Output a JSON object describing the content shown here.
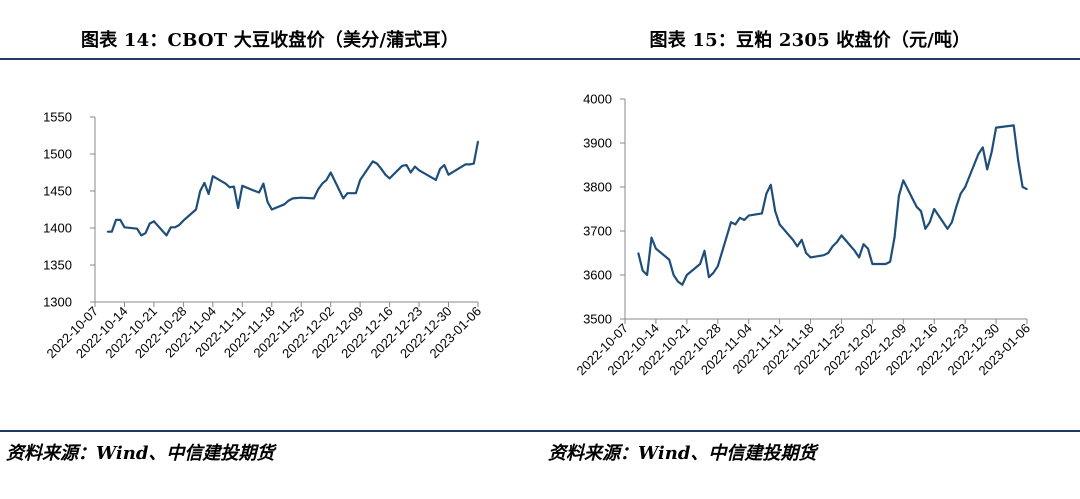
{
  "charts": [
    {
      "title": "图表 14：CBOT 大豆收盘价（美分/蒲式耳）",
      "source": "资料来源：Wind、中信建投期货",
      "chart_data": {
        "type": "line",
        "title": "图表 14：CBOT 大豆收盘价（美分/蒲式耳）",
        "xlabel": "",
        "ylabel": "",
        "ylim": [
          1300,
          1550
        ],
        "yticks": [
          1300,
          1350,
          1400,
          1450,
          1500,
          1550
        ],
        "x_tick_labels": [
          "2022-10-07",
          "2022-10-14",
          "2022-10-21",
          "2022-10-28",
          "2022-11-04",
          "2022-11-11",
          "2022-11-18",
          "2022-11-25",
          "2022-12-02",
          "2022-12-09",
          "2022-12-16",
          "2022-12-23",
          "2022-12-30",
          "2023-01-06"
        ],
        "x_start": "2022-10-07",
        "x_end": "2023-01-06",
        "grid": false,
        "line_color": "#1f4e79",
        "series": [
          {
            "name": "",
            "x": [
              "2022-10-10",
              "2022-10-11",
              "2022-10-12",
              "2022-10-13",
              "2022-10-14",
              "2022-10-17",
              "2022-10-18",
              "2022-10-19",
              "2022-10-20",
              "2022-10-21",
              "2022-10-24",
              "2022-10-25",
              "2022-10-26",
              "2022-10-27",
              "2022-10-28",
              "2022-10-31",
              "2022-11-01",
              "2022-11-02",
              "2022-11-03",
              "2022-11-04",
              "2022-11-07",
              "2022-11-08",
              "2022-11-09",
              "2022-11-10",
              "2022-11-11",
              "2022-11-14",
              "2022-11-15",
              "2022-11-16",
              "2022-11-17",
              "2022-11-18",
              "2022-11-21",
              "2022-11-22",
              "2022-11-23",
              "2022-11-25",
              "2022-11-28",
              "2022-11-29",
              "2022-11-30",
              "2022-12-01",
              "2022-12-02",
              "2022-12-05",
              "2022-12-06",
              "2022-12-07",
              "2022-12-08",
              "2022-12-09",
              "2022-12-12",
              "2022-12-13",
              "2022-12-14",
              "2022-12-15",
              "2022-12-16",
              "2022-12-19",
              "2022-12-20",
              "2022-12-21",
              "2022-12-22",
              "2022-12-23",
              "2022-12-27",
              "2022-12-28",
              "2022-12-29",
              "2022-12-30",
              "2023-01-03",
              "2023-01-04",
              "2023-01-05",
              "2023-01-06"
            ],
            "values": [
              1395,
              1395,
              1411,
              1411,
              1401,
              1399,
              1390,
              1393,
              1406,
              1409,
              1390,
              1401,
              1401,
              1404,
              1410,
              1425,
              1450,
              1461,
              1446,
              1470,
              1460,
              1455,
              1456,
              1427,
              1457,
              1450,
              1448,
              1460,
              1435,
              1425,
              1432,
              1437,
              1440,
              1441,
              1440,
              1452,
              1460,
              1465,
              1475,
              1440,
              1447,
              1447,
              1447,
              1465,
              1490,
              1487,
              1480,
              1472,
              1467,
              1484,
              1485,
              1475,
              1483,
              1478,
              1465,
              1480,
              1485,
              1472,
              1486,
              1486,
              1487,
              1517
            ]
          }
        ]
      }
    },
    {
      "title": "图表 15：豆粕 2305 收盘价（元/吨）",
      "source": "资料来源：Wind、中信建投期货",
      "chart_data": {
        "type": "line",
        "title": "图表 15：豆粕 2305 收盘价（元/吨）",
        "xlabel": "",
        "ylabel": "",
        "ylim": [
          3500,
          4000
        ],
        "yticks": [
          3500,
          3600,
          3700,
          3800,
          3900,
          4000
        ],
        "x_tick_labels": [
          "2022-10-07",
          "2022-10-14",
          "2022-10-21",
          "2022-10-28",
          "2022-11-04",
          "2022-11-11",
          "2022-11-18",
          "2022-11-25",
          "2022-12-02",
          "2022-12-09",
          "2022-12-16",
          "2022-12-23",
          "2022-12-30",
          "2023-01-06"
        ],
        "x_start": "2022-10-07",
        "x_end": "2023-01-06",
        "grid": false,
        "line_color": "#1f4e79",
        "series": [
          {
            "name": "",
            "x": [
              "2022-10-10",
              "2022-10-11",
              "2022-10-12",
              "2022-10-13",
              "2022-10-14",
              "2022-10-17",
              "2022-10-18",
              "2022-10-19",
              "2022-10-20",
              "2022-10-21",
              "2022-10-24",
              "2022-10-25",
              "2022-10-26",
              "2022-10-27",
              "2022-10-28",
              "2022-10-31",
              "2022-11-01",
              "2022-11-02",
              "2022-11-03",
              "2022-11-04",
              "2022-11-07",
              "2022-11-08",
              "2022-11-09",
              "2022-11-10",
              "2022-11-11",
              "2022-11-14",
              "2022-11-15",
              "2022-11-16",
              "2022-11-17",
              "2022-11-18",
              "2022-11-21",
              "2022-11-22",
              "2022-11-23",
              "2022-11-24",
              "2022-11-25",
              "2022-11-28",
              "2022-11-29",
              "2022-11-30",
              "2022-12-01",
              "2022-12-02",
              "2022-12-05",
              "2022-12-06",
              "2022-12-07",
              "2022-12-08",
              "2022-12-09",
              "2022-12-12",
              "2022-12-13",
              "2022-12-14",
              "2022-12-15",
              "2022-12-16",
              "2022-12-19",
              "2022-12-20",
              "2022-12-21",
              "2022-12-22",
              "2022-12-23",
              "2022-12-26",
              "2022-12-27",
              "2022-12-28",
              "2022-12-29",
              "2022-12-30",
              "2023-01-03",
              "2023-01-04",
              "2023-01-05",
              "2023-01-06"
            ],
            "values": [
              3650,
              3610,
              3600,
              3685,
              3660,
              3635,
              3600,
              3585,
              3578,
              3600,
              3625,
              3655,
              3595,
              3605,
              3620,
              3720,
              3715,
              3730,
              3725,
              3735,
              3740,
              3785,
              3805,
              3745,
              3715,
              3680,
              3665,
              3680,
              3650,
              3640,
              3645,
              3650,
              3665,
              3675,
              3690,
              3655,
              3640,
              3670,
              3660,
              3625,
              3625,
              3630,
              3685,
              3780,
              3815,
              3755,
              3745,
              3705,
              3720,
              3750,
              3705,
              3720,
              3755,
              3785,
              3800,
              3875,
              3890,
              3840,
              3880,
              3935,
              3940,
              3860,
              3800,
              3795
            ]
          }
        ]
      }
    }
  ]
}
